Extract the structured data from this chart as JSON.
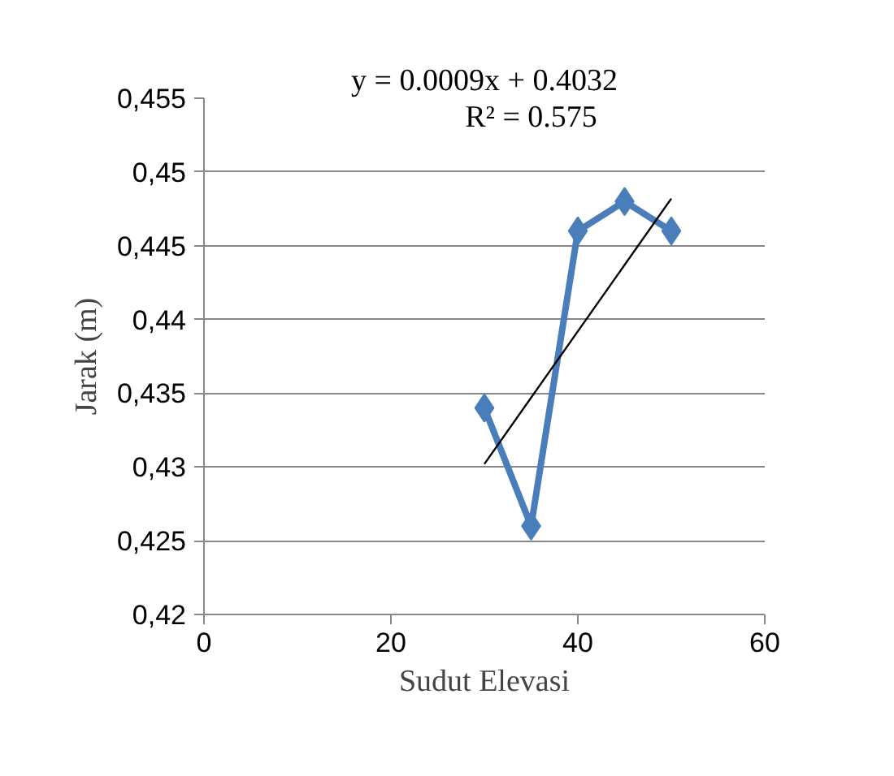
{
  "chart_data": {
    "type": "line",
    "xlabel": "Sudut Elevasi",
    "ylabel": "Jarak (m)",
    "annotations": [
      "y = 0.0009x + 0.4032",
      "R² = 0.575"
    ],
    "x": [
      30,
      35,
      40,
      45,
      50
    ],
    "series": [
      {
        "color": "#4a7ebb",
        "values": [
          0.434,
          0.426,
          0.446,
          0.448,
          0.446
        ],
        "marker": "diamond"
      },
      {
        "type": "line",
        "color": "#000000",
        "x": [
          30,
          50
        ],
        "values": [
          0.4302,
          0.4482
        ],
        "marker": "none"
      }
    ],
    "xlim": [
      0,
      60
    ],
    "xticks": [
      0,
      20,
      40,
      60
    ],
    "ylim": [
      0.42,
      0.455
    ],
    "yticks": [
      {
        "value": 0.42,
        "label": "0,42"
      },
      {
        "value": 0.425,
        "label": "0,425"
      },
      {
        "value": 0.43,
        "label": "0,43"
      },
      {
        "value": 0.435,
        "label": "0,435"
      },
      {
        "value": 0.44,
        "label": "0,44"
      },
      {
        "value": 0.445,
        "label": "0,445"
      },
      {
        "value": 0.45,
        "label": "0,45"
      },
      {
        "value": 0.455,
        "label": "0,455"
      }
    ],
    "grid": "y"
  }
}
